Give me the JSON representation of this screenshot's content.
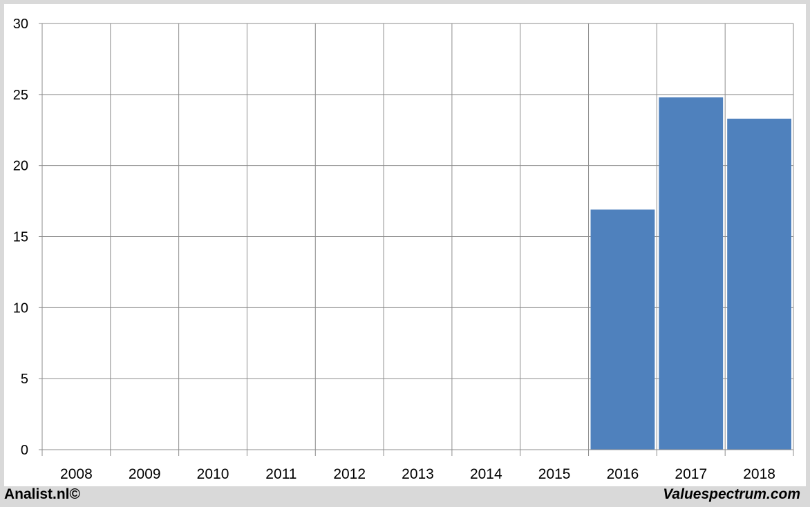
{
  "chart_data": {
    "type": "bar",
    "title": "",
    "xlabel": "",
    "ylabel": "",
    "categories": [
      "2008",
      "2009",
      "2010",
      "2011",
      "2012",
      "2013",
      "2014",
      "2015",
      "2016",
      "2017",
      "2018"
    ],
    "values": [
      null,
      null,
      null,
      null,
      null,
      null,
      null,
      null,
      16.9,
      24.8,
      23.3
    ],
    "ylim": [
      0,
      30
    ],
    "yticks": [
      0,
      5,
      10,
      15,
      20,
      25,
      30
    ],
    "grid": true,
    "legend": "none",
    "bar_color": "#4f81bd"
  },
  "footer": {
    "left_text": "Analist.nl©",
    "right_text": "Valuespectrum.com"
  }
}
